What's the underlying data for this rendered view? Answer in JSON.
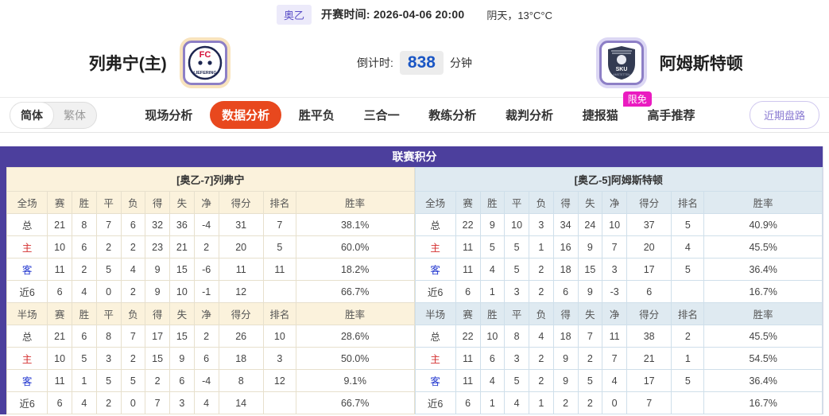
{
  "top_bar": {
    "league_badge": "奥乙",
    "kickoff_label": "开赛时间:",
    "kickoff_time": "2026-04-06 20:00",
    "weather": "阴天，13°C°C"
  },
  "match_header": {
    "home_team": "列弗宁(主)",
    "away_team": "阿姆斯特顿",
    "home_logo_text": "FC",
    "home_logo_subtext": "LIEFERING",
    "away_logo_text": "SKU",
    "countdown_label": "倒计时:",
    "countdown_value": "838",
    "countdown_unit": "分钟"
  },
  "nav": {
    "lang_simplified": "简体",
    "lang_traditional": "繁体",
    "tabs": [
      {
        "label": "现场分析",
        "active": false,
        "badge": ""
      },
      {
        "label": "数据分析",
        "active": true,
        "badge": ""
      },
      {
        "label": "胜平负",
        "active": false,
        "badge": ""
      },
      {
        "label": "三合一",
        "active": false,
        "badge": ""
      },
      {
        "label": "教练分析",
        "active": false,
        "badge": ""
      },
      {
        "label": "裁判分析",
        "active": false,
        "badge": ""
      },
      {
        "label": "捷报猫",
        "active": false,
        "badge": "限免"
      },
      {
        "label": "高手推荐",
        "active": false,
        "badge": ""
      }
    ],
    "recent_trends_button": "近期盘路"
  },
  "league_table": {
    "title": "联赛积分",
    "columns_full": [
      "全场",
      "赛",
      "胜",
      "平",
      "负",
      "得",
      "失",
      "净",
      "得分",
      "排名",
      "胜率"
    ],
    "columns_half": [
      "半场",
      "赛",
      "胜",
      "平",
      "负",
      "得",
      "失",
      "净",
      "得分",
      "排名",
      "胜率"
    ],
    "home": {
      "subtitle": "[奥乙-7]列弗宁",
      "full_rows": [
        [
          "总",
          "21",
          "8",
          "7",
          "6",
          "32",
          "36",
          "-4",
          "31",
          "7",
          "38.1%"
        ],
        [
          "主",
          "10",
          "6",
          "2",
          "2",
          "23",
          "21",
          "2",
          "20",
          "5",
          "60.0%"
        ],
        [
          "客",
          "11",
          "2",
          "5",
          "4",
          "9",
          "15",
          "-6",
          "11",
          "11",
          "18.2%"
        ],
        [
          "近6",
          "6",
          "4",
          "0",
          "2",
          "9",
          "10",
          "-1",
          "12",
          "",
          "66.7%"
        ]
      ],
      "half_rows": [
        [
          "总",
          "21",
          "6",
          "8",
          "7",
          "17",
          "15",
          "2",
          "26",
          "10",
          "28.6%"
        ],
        [
          "主",
          "10",
          "5",
          "3",
          "2",
          "15",
          "9",
          "6",
          "18",
          "3",
          "50.0%"
        ],
        [
          "客",
          "11",
          "1",
          "5",
          "5",
          "2",
          "6",
          "-4",
          "8",
          "12",
          "9.1%"
        ],
        [
          "近6",
          "6",
          "4",
          "2",
          "0",
          "7",
          "3",
          "4",
          "14",
          "",
          "66.7%"
        ]
      ]
    },
    "away": {
      "subtitle": "[奥乙-5]阿姆斯特顿",
      "full_rows": [
        [
          "总",
          "22",
          "9",
          "10",
          "3",
          "34",
          "24",
          "10",
          "37",
          "5",
          "40.9%"
        ],
        [
          "主",
          "11",
          "5",
          "5",
          "1",
          "16",
          "9",
          "7",
          "20",
          "4",
          "45.5%"
        ],
        [
          "客",
          "11",
          "4",
          "5",
          "2",
          "18",
          "15",
          "3",
          "17",
          "5",
          "36.4%"
        ],
        [
          "近6",
          "6",
          "1",
          "3",
          "2",
          "6",
          "9",
          "-3",
          "6",
          "",
          "16.7%"
        ]
      ],
      "half_rows": [
        [
          "总",
          "22",
          "10",
          "8",
          "4",
          "18",
          "7",
          "11",
          "38",
          "2",
          "45.5%"
        ],
        [
          "主",
          "11",
          "6",
          "3",
          "2",
          "9",
          "2",
          "7",
          "21",
          "1",
          "54.5%"
        ],
        [
          "客",
          "11",
          "4",
          "5",
          "2",
          "9",
          "5",
          "4",
          "17",
          "5",
          "36.4%"
        ],
        [
          "近6",
          "6",
          "1",
          "4",
          "1",
          "2",
          "2",
          "0",
          "7",
          "",
          "16.7%"
        ]
      ]
    }
  },
  "colors": {
    "panel_purple": "#4c3f9d",
    "active_tab_orange": "#e8481e",
    "badge_magenta": "#ea1bc0",
    "countdown_blue": "#1a56c4",
    "home_header_cream": "#fbf2dc",
    "away_header_blue": "#dfeaf1",
    "home_label_red": "#d43030",
    "away_label_blue": "#2035cf"
  }
}
